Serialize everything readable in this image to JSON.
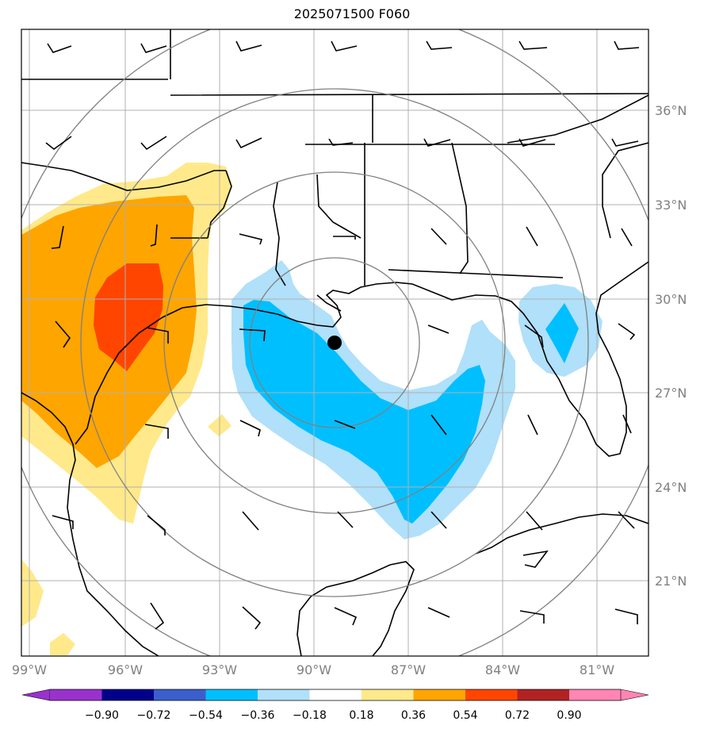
{
  "title": "2025071500 F060",
  "lon_labels": [
    "99°W",
    "96°W",
    "93°W",
    "90°W",
    "87°W",
    "84°W",
    "81°W"
  ],
  "lat_labels": [
    "36°N",
    "33°N",
    "30°N",
    "27°N",
    "24°N",
    "21°N"
  ],
  "colorbar": {
    "colors": [
      "#9932cc",
      "#00008b",
      "#3a5fcd",
      "#00bfff",
      "#b0e0fa",
      "#ffffff",
      "#ffe98a",
      "#ffa500",
      "#ff4500",
      "#b22222",
      "#ff85b4"
    ],
    "labels": [
      "−0.90",
      "−0.72",
      "−0.54",
      "−0.36",
      "−0.18",
      "0.18",
      "0.36",
      "0.54",
      "0.72",
      "0.90"
    ]
  },
  "storm_marker": {
    "lon": "89.3°W",
    "lat": "28.5°N"
  },
  "colors": {
    "positive_light": "#ffe98a",
    "positive_mid": "#ffa500",
    "positive_high": "#ff4500",
    "negative_light": "#b0e0fa",
    "negative_mid": "#00bfff",
    "range_ring": "#808080",
    "grid": "#b0b0b0"
  }
}
